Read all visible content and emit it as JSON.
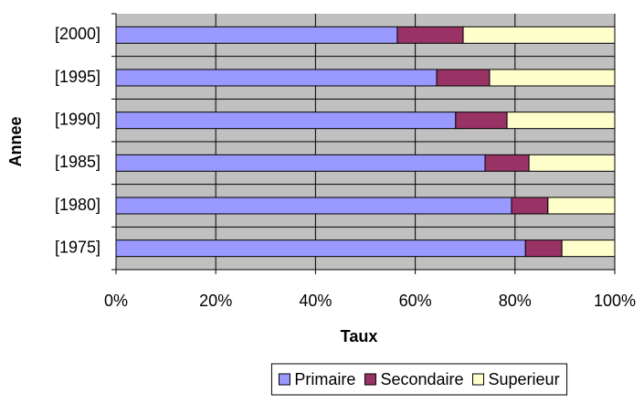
{
  "chart_data": {
    "type": "stacked-bar-horizontal",
    "x_label": "Taux",
    "y_label": "Annee",
    "categories": [
      "[2000]",
      "[1995]",
      "[1990]",
      "[1985]",
      "[1980]",
      "[1975]"
    ],
    "series": [
      {
        "name": "Primaire",
        "color": "#9999ff",
        "values": [
          56.4,
          64.3,
          68.1,
          74.0,
          79.3,
          82.1
        ]
      },
      {
        "name": "Secondaire",
        "color": "#993366",
        "values": [
          13.2,
          10.6,
          10.3,
          8.8,
          7.3,
          7.3
        ]
      },
      {
        "name": "Superieur",
        "color": "#ffffcc",
        "values": [
          30.4,
          25.1,
          21.6,
          17.2,
          13.4,
          10.6
        ]
      }
    ],
    "xlim": [
      0,
      100
    ],
    "xticks": [
      {
        "value": 0,
        "label": "0%"
      },
      {
        "value": 20,
        "label": "20%"
      },
      {
        "value": 40,
        "label": "40%"
      },
      {
        "value": 60,
        "label": "60%"
      },
      {
        "value": 80,
        "label": "80%"
      },
      {
        "value": 100,
        "label": "100%"
      }
    ],
    "grid": true,
    "legend": "bottom",
    "plot_background": "#c0c0c0"
  }
}
